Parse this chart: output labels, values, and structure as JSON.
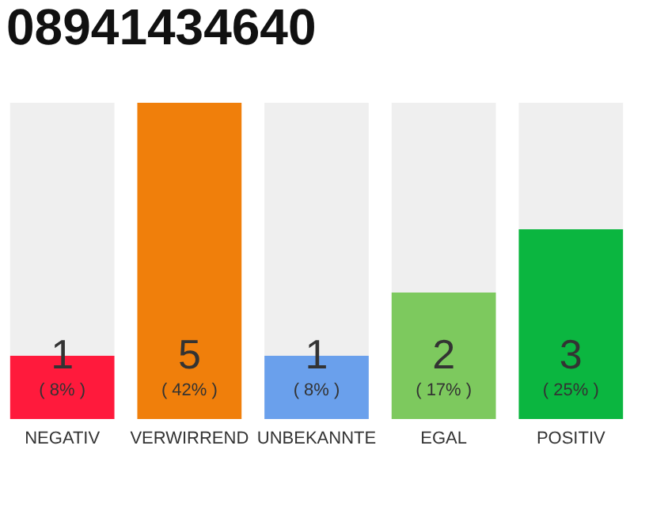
{
  "chart_data": {
    "type": "bar",
    "title": "08941434640",
    "categories": [
      "NEGATIV",
      "VERWIRREND",
      "UNBEKANNTE",
      "EGAL",
      "POSITIV"
    ],
    "stacked": true,
    "series": [
      {
        "colors": [
          "#ff1a3c",
          "#f07f0b",
          "#6aa0ec",
          "#7dc95e",
          "#0bb640"
        ],
        "values": [
          1,
          5,
          1,
          2,
          3
        ],
        "value_labels": [
          "1",
          "5",
          "1",
          "2",
          "3"
        ]
      },
      {
        "color": "#efefef",
        "values": [
          4,
          0,
          4,
          3,
          2
        ]
      }
    ],
    "annotations": [
      "( 8% )",
      "( 42% )",
      "( 8% )",
      "( 17% )",
      "( 25% )"
    ],
    "ylim": [
      0,
      5
    ],
    "tick_labels": "x",
    "grid": false,
    "legend": false
  }
}
